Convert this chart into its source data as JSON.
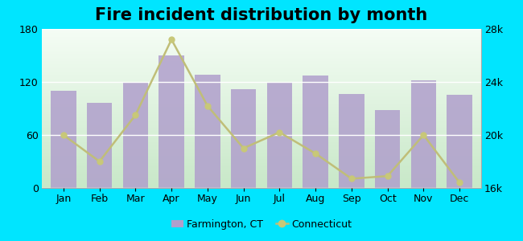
{
  "title": "Fire incident distribution by month",
  "months": [
    "Jan",
    "Feb",
    "Mar",
    "Apr",
    "May",
    "Jun",
    "Jul",
    "Aug",
    "Sep",
    "Oct",
    "Nov",
    "Dec"
  ],
  "farmington_values": [
    110,
    96,
    120,
    150,
    128,
    112,
    120,
    127,
    106,
    88,
    122,
    105
  ],
  "connecticut_values": [
    20000,
    18000,
    21500,
    27200,
    22200,
    19000,
    20200,
    18600,
    16700,
    16900,
    20000,
    16400
  ],
  "bar_color": "#b09fcc",
  "bar_edge_color": "#b09fcc",
  "line_color": "#c0be78",
  "line_marker": "o",
  "line_marker_color": "#c8c878",
  "outer_background": "#00e5ff",
  "bg_color_top": "#f0faf0",
  "bg_color_bottom": "#d8f0d8",
  "left_ylim": [
    0,
    180
  ],
  "left_yticks": [
    0,
    60,
    120,
    180
  ],
  "right_ylim": [
    16000,
    28000
  ],
  "right_yticks": [
    16000,
    20000,
    24000,
    28000
  ],
  "right_yticklabels": [
    "16k",
    "20k",
    "24k",
    "28k"
  ],
  "title_fontsize": 15,
  "tick_fontsize": 9,
  "legend_farmington": "Farmington, CT",
  "legend_connecticut": "Connecticut",
  "figsize": [
    6.5,
    3.0
  ],
  "dpi": 100
}
